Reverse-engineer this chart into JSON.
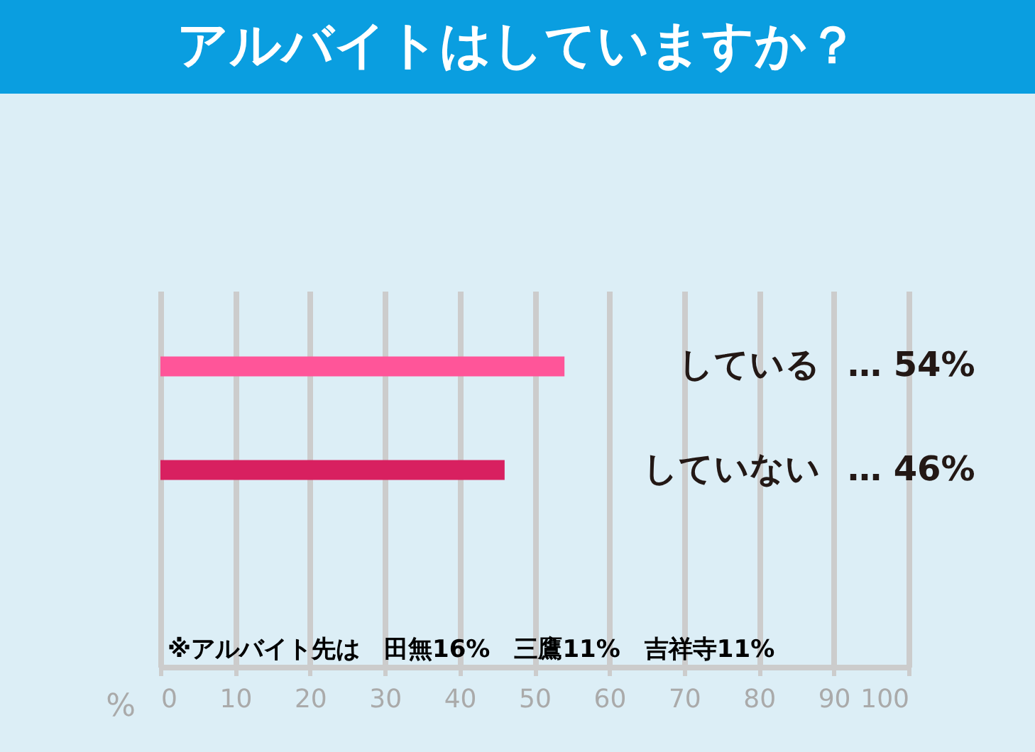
{
  "chart_data": {
    "type": "bar",
    "orientation": "horizontal",
    "title": "アルバイトはしていますか？",
    "xlabel": "%",
    "categories": [
      "している",
      "していない"
    ],
    "values": [
      54,
      46
    ],
    "colors": [
      "#ff5599",
      "#d82060"
    ],
    "value_labels": [
      "…   54%",
      "…   46%"
    ],
    "xlim": [
      0,
      100
    ],
    "xticks": [
      0,
      10,
      20,
      30,
      40,
      50,
      60,
      70,
      80,
      90,
      100
    ],
    "grid": "x",
    "legend": false,
    "annotations": [
      "※アルバイト先は　田無16%　三鷹11%　吉祥寺11%"
    ]
  }
}
